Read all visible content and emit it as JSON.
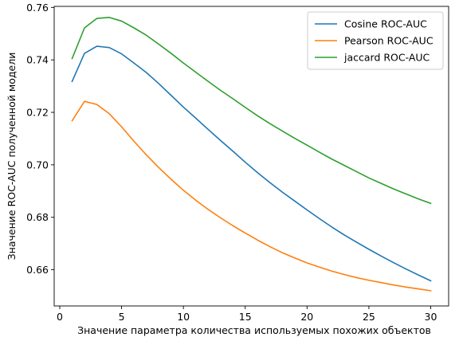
{
  "chart_data": {
    "type": "line",
    "title": "",
    "xlabel": "Значение параметра количества используемых похожих объектов",
    "ylabel": "Значение ROC-AUC полученной модели",
    "xlim": [
      -0.45,
      31.45
    ],
    "ylim": [
      0.6462,
      0.7604
    ],
    "xticks": [
      0,
      5,
      10,
      15,
      20,
      25,
      30
    ],
    "yticks": [
      0.66,
      0.68,
      0.7,
      0.72,
      0.74,
      0.76
    ],
    "ytick_labels": [
      "0.66",
      "0.68",
      "0.70",
      "0.72",
      "0.74",
      "0.76"
    ],
    "grid": false,
    "legend_position": "top-right",
    "x": [
      1,
      2,
      3,
      4,
      5,
      6,
      7,
      8,
      9,
      10,
      11,
      12,
      13,
      14,
      15,
      16,
      17,
      18,
      19,
      20,
      21,
      22,
      23,
      24,
      25,
      26,
      27,
      28,
      29,
      30
    ],
    "series": [
      {
        "name": "Cosine ROC-AUC",
        "color": "#1f77b4",
        "values": [
          0.7318,
          0.7425,
          0.7452,
          0.7447,
          0.7423,
          0.7388,
          0.7352,
          0.731,
          0.7265,
          0.722,
          0.7178,
          0.7135,
          0.7093,
          0.7052,
          0.701,
          0.697,
          0.6932,
          0.6896,
          0.6862,
          0.6828,
          0.6795,
          0.6763,
          0.6733,
          0.6705,
          0.6678,
          0.6652,
          0.6627,
          0.6603,
          0.658,
          0.6558
        ]
      },
      {
        "name": "Pearson ROC-AUC",
        "color": "#ff7f0e",
        "values": [
          0.7168,
          0.7242,
          0.723,
          0.7195,
          0.7145,
          0.709,
          0.7038,
          0.699,
          0.6945,
          0.6903,
          0.6865,
          0.683,
          0.6798,
          0.6768,
          0.674,
          0.6713,
          0.6688,
          0.6665,
          0.6645,
          0.6626,
          0.661,
          0.6595,
          0.6582,
          0.657,
          0.656,
          0.6551,
          0.6542,
          0.6534,
          0.6527,
          0.652
        ]
      },
      {
        "name": "jaccard ROC-AUC",
        "color": "#2ca02c",
        "values": [
          0.7405,
          0.7522,
          0.7558,
          0.7562,
          0.7548,
          0.7522,
          0.7494,
          0.746,
          0.7425,
          0.7388,
          0.7353,
          0.7318,
          0.7284,
          0.7252,
          0.7219,
          0.7187,
          0.7157,
          0.7129,
          0.7101,
          0.7075,
          0.7048,
          0.7022,
          0.6998,
          0.6974,
          0.695,
          0.6929,
          0.6908,
          0.6889,
          0.687,
          0.6853
        ]
      }
    ]
  }
}
